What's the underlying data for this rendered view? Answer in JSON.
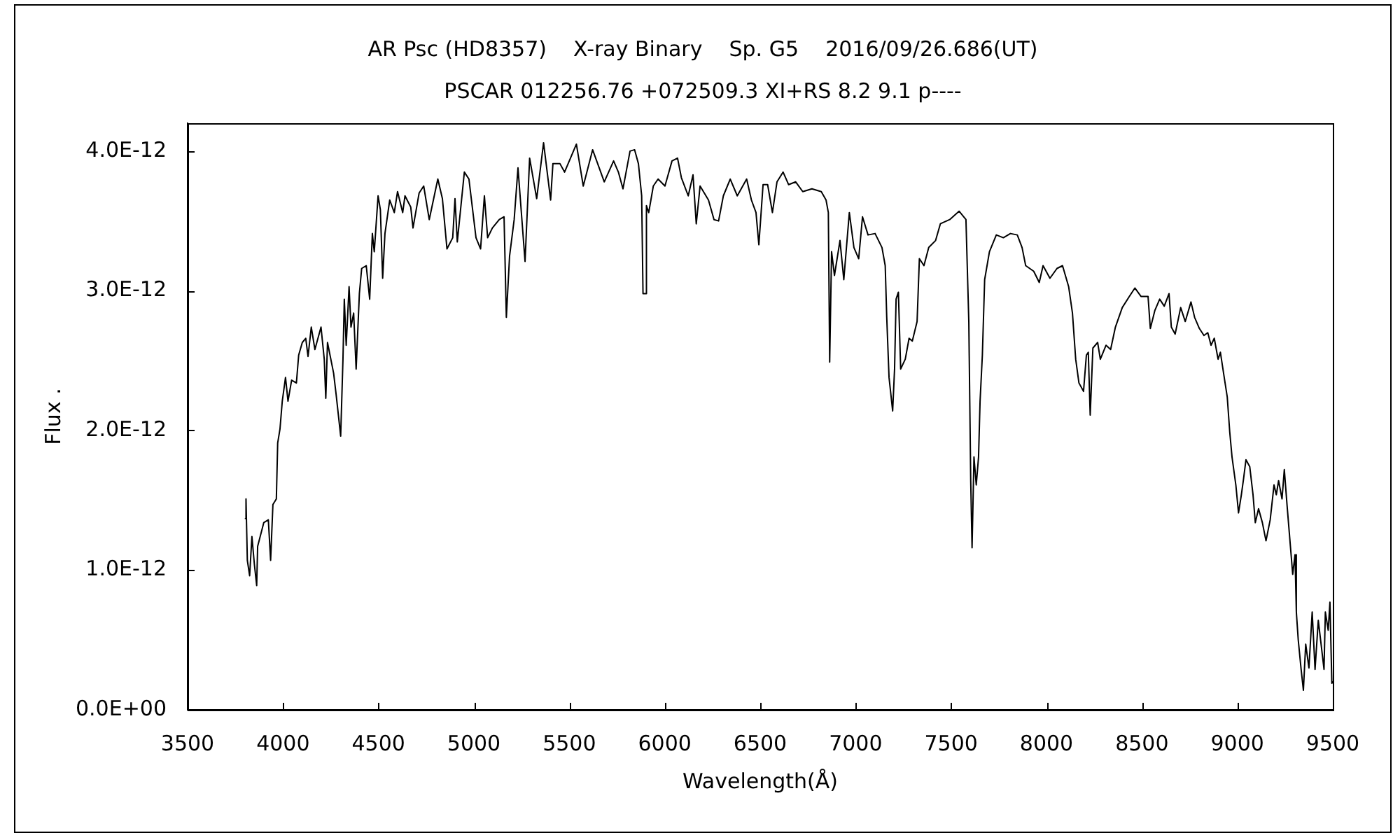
{
  "chart_data": {
    "type": "line",
    "title": "AR Psc (HD8357)    X-ray Binary    Sp. G5    2016/09/26.686(UT)",
    "subtitle": "PSCAR 012256.76 +072509.3 XI+RS 8.2 9.1 p----",
    "xlabel": "Wavelength(Å)",
    "ylabel": "Flux .",
    "x": [
      3803,
      3806,
      3813,
      3825,
      3837,
      3850,
      3862,
      3867,
      3899,
      3923,
      3935,
      3947,
      3965,
      3972,
      3984,
      3996,
      4013,
      4026,
      4045,
      4070,
      4082,
      4101,
      4119,
      4131,
      4148,
      4167,
      4199,
      4216,
      4224,
      4233,
      4265,
      4278,
      4302,
      4314,
      4321,
      4331,
      4346,
      4356,
      4370,
      4383,
      4400,
      4412,
      4436,
      4454,
      4468,
      4478,
      4498,
      4510,
      4522,
      4534,
      4559,
      4583,
      4600,
      4627,
      4639,
      4669,
      4681,
      4713,
      4737,
      4766,
      4811,
      4835,
      4859,
      4889,
      4901,
      4913,
      4950,
      4974,
      5011,
      5035,
      5055,
      5072,
      5097,
      5133,
      5158,
      5170,
      5187,
      5211,
      5231,
      5268,
      5292,
      5329,
      5365,
      5402,
      5414,
      5451,
      5475,
      5537,
      5573,
      5622,
      5683,
      5732,
      5757,
      5781,
      5818,
      5842,
      5862,
      5879,
      5886,
      5899,
      5904,
      5916,
      5940,
      5965,
      6001,
      6038,
      6067,
      6087,
      6123,
      6148,
      6165,
      6185,
      6229,
      6258,
      6282,
      6307,
      6343,
      6380,
      6429,
      6454,
      6478,
      6493,
      6515,
      6539,
      6564,
      6588,
      6620,
      6649,
      6686,
      6723,
      6771,
      6820,
      6845,
      6857,
      6864,
      6874,
      6889,
      6918,
      6938,
      6967,
      6991,
      7016,
      7036,
      7065,
      7102,
      7138,
      7155,
      7163,
      7175,
      7194,
      7204,
      7212,
      7224,
      7236,
      7260,
      7280,
      7297,
      7322,
      7334,
      7358,
      7383,
      7419,
      7444,
      7493,
      7542,
      7578,
      7593,
      7603,
      7610,
      7620,
      7632,
      7644,
      7652,
      7664,
      7676,
      7701,
      7737,
      7774,
      7811,
      7847,
      7872,
      7891,
      7933,
      7962,
      7982,
      8018,
      8055,
      8084,
      8116,
      8136,
      8153,
      8170,
      8194,
      8209,
      8219,
      8229,
      8243,
      8268,
      8282,
      8312,
      8336,
      8361,
      8397,
      8434,
      8463,
      8495,
      8532,
      8544,
      8568,
      8593,
      8617,
      8642,
      8654,
      8674,
      8703,
      8727,
      8757,
      8776,
      8801,
      8825,
      8845,
      8862,
      8879,
      8899,
      8911,
      8930,
      8947,
      8960,
      8972,
      8992,
      9006,
      9021,
      9033,
      9045,
      9065,
      9082,
      9094,
      9111,
      9131,
      9150,
      9172,
      9192,
      9204,
      9216,
      9234,
      9246,
      9260,
      9278,
      9290,
      9302,
      9309,
      9319,
      9334,
      9346,
      9358,
      9375,
      9392,
      9407,
      9424,
      9436,
      9454,
      9461,
      9476,
      9485,
      9495,
      9500
    ],
    "series": [
      {
        "color": "#000000",
        "values": [
          1.37e-12,
          1.51e-12,
          1.07e-12,
          9.6e-13,
          1.24e-12,
          1.04e-12,
          8.9e-13,
          1.17e-12,
          1.34e-12,
          1.36e-12,
          1.07e-12,
          1.47e-12,
          1.51e-12,
          1.91e-12,
          2.01e-12,
          2.21e-12,
          2.38e-12,
          2.21e-12,
          2.36e-12,
          2.34e-12,
          2.54e-12,
          2.63e-12,
          2.66e-12,
          2.53e-12,
          2.74e-12,
          2.58e-12,
          2.74e-12,
          2.51e-12,
          2.23e-12,
          2.63e-12,
          2.41e-12,
          2.26e-12,
          1.96e-12,
          2.51e-12,
          2.94e-12,
          2.61e-12,
          3.03e-12,
          2.74e-12,
          2.84e-12,
          2.44e-12,
          2.98e-12,
          3.16e-12,
          3.18e-12,
          2.94e-12,
          3.41e-12,
          3.28e-12,
          3.68e-12,
          3.58e-12,
          3.09e-12,
          3.41e-12,
          3.65e-12,
          3.56e-12,
          3.71e-12,
          3.56e-12,
          3.68e-12,
          3.6e-12,
          3.45e-12,
          3.7e-12,
          3.75e-12,
          3.51e-12,
          3.8e-12,
          3.66e-12,
          3.3e-12,
          3.38e-12,
          3.66e-12,
          3.35e-12,
          3.85e-12,
          3.8e-12,
          3.38e-12,
          3.3e-12,
          3.68e-12,
          3.38e-12,
          3.45e-12,
          3.51e-12,
          3.53e-12,
          2.81e-12,
          3.25e-12,
          3.51e-12,
          3.88e-12,
          3.21e-12,
          3.95e-12,
          3.66e-12,
          4.06e-12,
          3.65e-12,
          3.91e-12,
          3.91e-12,
          3.85e-12,
          4.05e-12,
          3.75e-12,
          4.01e-12,
          3.78e-12,
          3.93e-12,
          3.85e-12,
          3.73e-12,
          4e-12,
          4.01e-12,
          3.91e-12,
          3.68e-12,
          2.98e-12,
          2.98e-12,
          3.61e-12,
          3.56e-12,
          3.75e-12,
          3.8e-12,
          3.75e-12,
          3.93e-12,
          3.95e-12,
          3.81e-12,
          3.68e-12,
          3.83e-12,
          3.48e-12,
          3.75e-12,
          3.65e-12,
          3.51e-12,
          3.5e-12,
          3.68e-12,
          3.8e-12,
          3.68e-12,
          3.8e-12,
          3.65e-12,
          3.56e-12,
          3.33e-12,
          3.76e-12,
          3.76e-12,
          3.56e-12,
          3.78e-12,
          3.85e-12,
          3.76e-12,
          3.78e-12,
          3.71e-12,
          3.73e-12,
          3.71e-12,
          3.65e-12,
          3.56e-12,
          2.49e-12,
          3.28e-12,
          3.11e-12,
          3.36e-12,
          3.08e-12,
          3.56e-12,
          3.31e-12,
          3.23e-12,
          3.53e-12,
          3.4e-12,
          3.41e-12,
          3.31e-12,
          3.18e-12,
          2.81e-12,
          2.38e-12,
          2.14e-12,
          2.44e-12,
          2.94e-12,
          2.99e-12,
          2.44e-12,
          2.51e-12,
          2.66e-12,
          2.64e-12,
          2.78e-12,
          3.23e-12,
          3.18e-12,
          3.31e-12,
          3.36e-12,
          3.48e-12,
          3.51e-12,
          3.57e-12,
          3.51e-12,
          2.78e-12,
          1.64e-12,
          1.16e-12,
          1.81e-12,
          1.61e-12,
          1.81e-12,
          2.21e-12,
          2.54e-12,
          3.08e-12,
          3.28e-12,
          3.4e-12,
          3.38e-12,
          3.41e-12,
          3.4e-12,
          3.31e-12,
          3.18e-12,
          3.14e-12,
          3.06e-12,
          3.18e-12,
          3.09e-12,
          3.16e-12,
          3.18e-12,
          3.03e-12,
          2.84e-12,
          2.51e-12,
          2.34e-12,
          2.28e-12,
          2.54e-12,
          2.56e-12,
          2.11e-12,
          2.59e-12,
          2.63e-12,
          2.51e-12,
          2.61e-12,
          2.58e-12,
          2.74e-12,
          2.88e-12,
          2.96e-12,
          3.02e-12,
          2.96e-12,
          2.96e-12,
          2.73e-12,
          2.86e-12,
          2.94e-12,
          2.89e-12,
          2.98e-12,
          2.74e-12,
          2.69e-12,
          2.88e-12,
          2.78e-12,
          2.92e-12,
          2.81e-12,
          2.73e-12,
          2.68e-12,
          2.7e-12,
          2.61e-12,
          2.66e-12,
          2.51e-12,
          2.56e-12,
          2.39e-12,
          2.24e-12,
          1.99e-12,
          1.81e-12,
          1.61e-12,
          1.41e-12,
          1.54e-12,
          1.66e-12,
          1.79e-12,
          1.74e-12,
          1.54e-12,
          1.34e-12,
          1.44e-12,
          1.34e-12,
          1.21e-12,
          1.36e-12,
          1.61e-12,
          1.54e-12,
          1.64e-12,
          1.51e-12,
          1.72e-12,
          1.47e-12,
          1.17e-12,
          9.7e-13,
          1.11e-12,
          7e-13,
          5e-13,
          2.9e-13,
          1.4e-13,
          4.7e-13,
          3e-13,
          7e-13,
          2.9e-13,
          6.4e-13,
          5e-13,
          2.9e-13,
          7e-13,
          5.7e-13,
          7.7e-13,
          1.9e-13,
          2e-13
        ]
      }
    ],
    "xlim": [
      3500,
      9500
    ],
    "xticks": [
      3500,
      4000,
      4500,
      5000,
      5500,
      6000,
      6500,
      7000,
      7500,
      8000,
      8500,
      9000,
      9500
    ],
    "ylim": [
      0,
      4.2e-12
    ],
    "yticks": [
      {
        "value": 0,
        "label": "0.0E+00"
      },
      {
        "value": 1e-12,
        "label": "1.0E-12"
      },
      {
        "value": 2e-12,
        "label": "2.0E-12"
      },
      {
        "value": 3e-12,
        "label": "3.0E-12"
      },
      {
        "value": 4e-12,
        "label": "4.0E-12"
      }
    ],
    "marker": "none",
    "line_style": "solid"
  }
}
